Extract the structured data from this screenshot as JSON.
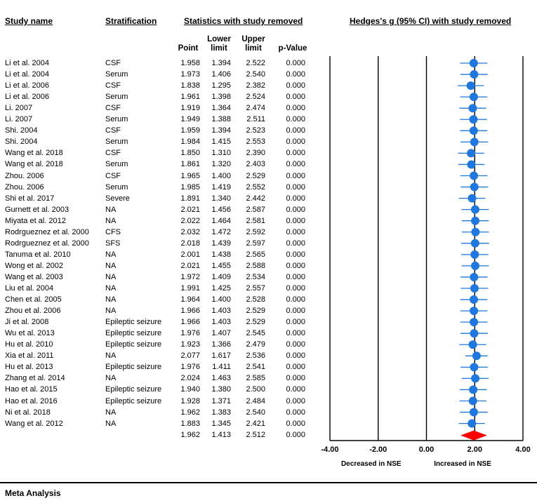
{
  "headers": {
    "study_name": "Study name",
    "stratification": "Stratification",
    "statistics": "Statistics with study removed",
    "forest_title": "Hedges's g (95% CI) with study removed",
    "point": "Point",
    "lower": "Lower limit",
    "upper": "Upper limit",
    "pvalue": "p-Value"
  },
  "footer": {
    "title": "Meta Analysis"
  },
  "summary": {
    "point": "1.962",
    "lower": "1.413",
    "upper": "2.512",
    "p": "0.000"
  },
  "rows": [
    {
      "name": "Li et al. 2004",
      "strat": "CSF",
      "point": "1.958",
      "lower": "1.394",
      "upper": "2.522",
      "p": "0.000"
    },
    {
      "name": "Li et al. 2004",
      "strat": "Serum",
      "point": "1.973",
      "lower": "1.406",
      "upper": "2.540",
      "p": "0.000"
    },
    {
      "name": "Li et al. 2006",
      "strat": "CSF",
      "point": "1.838",
      "lower": "1.295",
      "upper": "2.382",
      "p": "0.000"
    },
    {
      "name": "Li et al. 2006",
      "strat": "Serum",
      "point": "1.961",
      "lower": "1.398",
      "upper": "2.524",
      "p": "0.000"
    },
    {
      "name": "Li. 2007",
      "strat": "CSF",
      "point": "1.919",
      "lower": "1.364",
      "upper": "2.474",
      "p": "0.000"
    },
    {
      "name": "Li. 2007",
      "strat": "Serum",
      "point": "1.949",
      "lower": "1.388",
      "upper": "2.511",
      "p": "0.000"
    },
    {
      "name": "Shi. 2004",
      "strat": "CSF",
      "point": "1.959",
      "lower": "1.394",
      "upper": "2.523",
      "p": "0.000"
    },
    {
      "name": "Shi. 2004",
      "strat": "Serum",
      "point": "1.984",
      "lower": "1.415",
      "upper": "2.553",
      "p": "0.000"
    },
    {
      "name": "Wang et al. 2018",
      "strat": "CSF",
      "point": "1.850",
      "lower": "1.310",
      "upper": "2.390",
      "p": "0.000"
    },
    {
      "name": "Wang et al. 2018",
      "strat": "Serum",
      "point": "1.861",
      "lower": "1.320",
      "upper": "2.403",
      "p": "0.000"
    },
    {
      "name": "Zhou. 2006",
      "strat": "CSF",
      "point": "1.965",
      "lower": "1.400",
      "upper": "2.529",
      "p": "0.000"
    },
    {
      "name": "Zhou. 2006",
      "strat": "Serum",
      "point": "1.985",
      "lower": "1.419",
      "upper": "2.552",
      "p": "0.000"
    },
    {
      "name": "Shi et al. 2017",
      "strat": "Severe",
      "point": "1.891",
      "lower": "1.340",
      "upper": "2.442",
      "p": "0.000"
    },
    {
      "name": "Gurnett et al. 2003",
      "strat": "NA",
      "point": "2.021",
      "lower": "1.456",
      "upper": "2.587",
      "p": "0.000"
    },
    {
      "name": "Miyata et al. 2012",
      "strat": "NA",
      "point": "2.022",
      "lower": "1.464",
      "upper": "2.581",
      "p": "0.000"
    },
    {
      "name": "Rodrgueznez et al. 2000",
      "strat": "CFS",
      "point": "2.032",
      "lower": "1.472",
      "upper": "2.592",
      "p": "0.000"
    },
    {
      "name": "Rodrgueznez et al. 2000",
      "strat": "SFS",
      "point": "2.018",
      "lower": "1.439",
      "upper": "2.597",
      "p": "0.000"
    },
    {
      "name": "Tanuma et al. 2010",
      "strat": "NA",
      "point": "2.001",
      "lower": "1.438",
      "upper": "2.565",
      "p": "0.000"
    },
    {
      "name": "Wong et al. 2002",
      "strat": "NA",
      "point": "2.021",
      "lower": "1.455",
      "upper": "2.588",
      "p": "0.000"
    },
    {
      "name": "Wang et al. 2003",
      "strat": "NA",
      "point": "1.972",
      "lower": "1.409",
      "upper": "2.534",
      "p": "0.000"
    },
    {
      "name": "Liu et al. 2004",
      "strat": "NA",
      "point": "1.991",
      "lower": "1.425",
      "upper": "2.557",
      "p": "0.000"
    },
    {
      "name": "Chen et al. 2005",
      "strat": "NA",
      "point": "1.964",
      "lower": "1.400",
      "upper": "2.528",
      "p": "0.000"
    },
    {
      "name": "Zhou et al. 2006",
      "strat": "NA",
      "point": "1.966",
      "lower": "1.403",
      "upper": "2.529",
      "p": "0.000"
    },
    {
      "name": "Ji et al. 2008",
      "strat": "Epileptic seizure",
      "point": "1.966",
      "lower": "1.403",
      "upper": "2.529",
      "p": "0.000"
    },
    {
      "name": "Wu et al. 2013",
      "strat": "Epileptic seizure",
      "point": "1.976",
      "lower": "1.407",
      "upper": "2.545",
      "p": "0.000"
    },
    {
      "name": "Hu et al. 2010",
      "strat": "Epileptic seizure",
      "point": "1.923",
      "lower": "1.366",
      "upper": "2.479",
      "p": "0.000"
    },
    {
      "name": "Xia et al. 2011",
      "strat": "NA",
      "point": "2.077",
      "lower": "1.617",
      "upper": "2.536",
      "p": "0.000"
    },
    {
      "name": "Hu et al. 2013",
      "strat": "Epileptic seizure",
      "point": "1.976",
      "lower": "1.411",
      "upper": "2.541",
      "p": "0.000"
    },
    {
      "name": "Zhang et al. 2014",
      "strat": "NA",
      "point": "2.024",
      "lower": "1.463",
      "upper": "2.585",
      "p": "0.000"
    },
    {
      "name": "Hao et al. 2015",
      "strat": "Epileptic seizure",
      "point": "1.940",
      "lower": "1.380",
      "upper": "2.500",
      "p": "0.000"
    },
    {
      "name": "Hao et al. 2016",
      "strat": "Epileptic seizure",
      "point": "1.928",
      "lower": "1.371",
      "upper": "2.484",
      "p": "0.000"
    },
    {
      "name": "Ni et al. 2018",
      "strat": "NA",
      "point": "1.962",
      "lower": "1.383",
      "upper": "2.540",
      "p": "0.000"
    },
    {
      "name": "Wang et al. 2012",
      "strat": "NA",
      "point": "1.883",
      "lower": "1.345",
      "upper": "2.421",
      "p": "0.000"
    }
  ],
  "chart_data": {
    "type": "forest",
    "title": "Hedges's g (95% CI) with study removed",
    "x_ticks": [
      "-4.00",
      "-2.00",
      "0.00",
      "2.00",
      "4.00"
    ],
    "x_tick_values": [
      -4,
      -2,
      0,
      2,
      4
    ],
    "xlim": [
      -4,
      4
    ],
    "left_label": "Decreased in NSE",
    "right_label": "Increased in NSE",
    "colors": {
      "marker": "#1f77e0",
      "summary": "#ff0000",
      "axis": "#000000"
    },
    "points": [
      1.958,
      1.973,
      1.838,
      1.961,
      1.919,
      1.949,
      1.959,
      1.984,
      1.85,
      1.861,
      1.965,
      1.985,
      1.891,
      2.021,
      2.022,
      2.032,
      2.018,
      2.001,
      2.021,
      1.972,
      1.991,
      1.964,
      1.966,
      1.966,
      1.976,
      1.923,
      2.077,
      1.976,
      2.024,
      1.94,
      1.928,
      1.962,
      1.883
    ],
    "lower": [
      1.394,
      1.406,
      1.295,
      1.398,
      1.364,
      1.388,
      1.394,
      1.415,
      1.31,
      1.32,
      1.4,
      1.419,
      1.34,
      1.456,
      1.464,
      1.472,
      1.439,
      1.438,
      1.455,
      1.409,
      1.425,
      1.4,
      1.403,
      1.403,
      1.407,
      1.366,
      1.617,
      1.411,
      1.463,
      1.38,
      1.371,
      1.383,
      1.345
    ],
    "upper": [
      2.522,
      2.54,
      2.382,
      2.524,
      2.474,
      2.511,
      2.523,
      2.553,
      2.39,
      2.403,
      2.529,
      2.552,
      2.442,
      2.587,
      2.581,
      2.592,
      2.597,
      2.565,
      2.588,
      2.534,
      2.557,
      2.528,
      2.529,
      2.529,
      2.545,
      2.479,
      2.536,
      2.541,
      2.585,
      2.5,
      2.484,
      2.54,
      2.421
    ],
    "summary": {
      "point": 1.962,
      "lower": 1.413,
      "upper": 2.512
    }
  }
}
